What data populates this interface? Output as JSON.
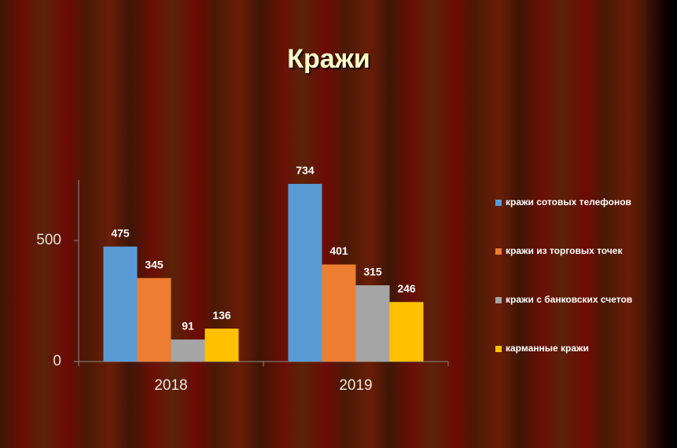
{
  "chart_data": {
    "type": "bar",
    "title": "Кражи",
    "categories": [
      "2018",
      "2019"
    ],
    "series": [
      {
        "name": "кражи сотовых телефонов",
        "color": "#5b9bd5",
        "values": [
          475,
          734
        ]
      },
      {
        "name": "кражи из торговых точек",
        "color": "#ed7d31",
        "values": [
          345,
          401
        ]
      },
      {
        "name": "кражи с банковских счетов",
        "color": "#a5a5a5",
        "values": [
          91,
          315
        ]
      },
      {
        "name": "карманные кражи",
        "color": "#ffc000",
        "values": [
          136,
          246
        ]
      }
    ],
    "ylim": [
      0,
      750
    ],
    "yticks": [
      0,
      500
    ],
    "grid": false,
    "legend": "right"
  }
}
